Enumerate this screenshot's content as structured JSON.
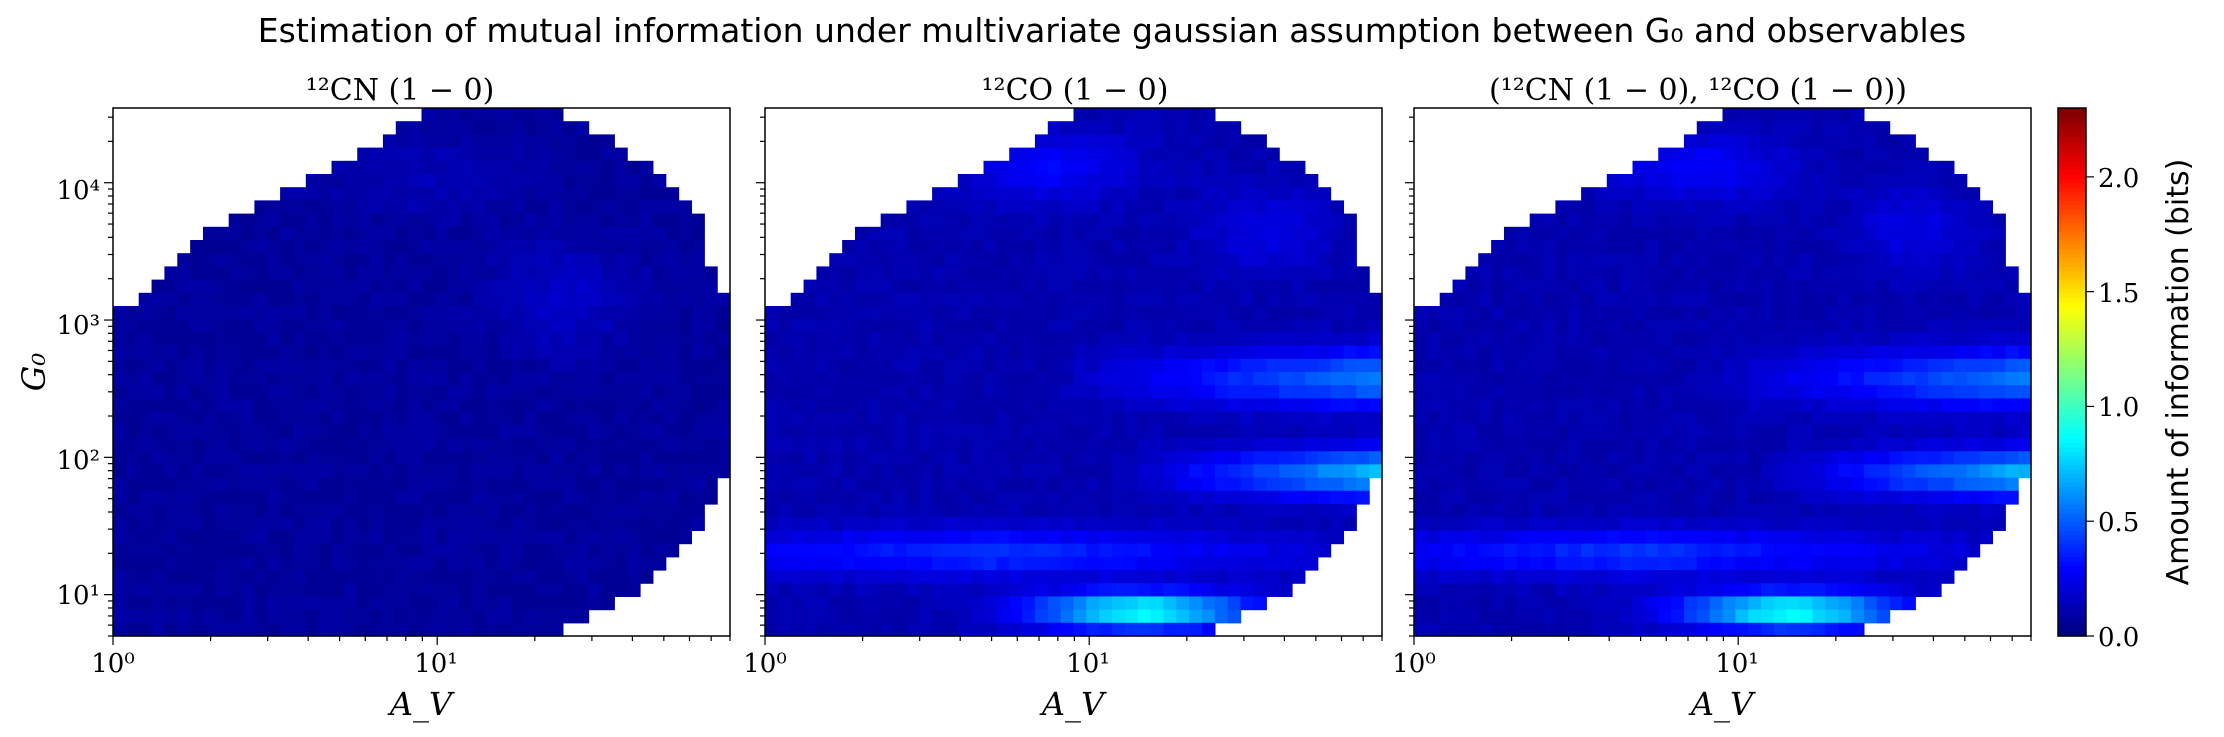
{
  "figure": {
    "title": "Estimation of mutual information under multivariate gaussian assumption between G₀ and observables"
  },
  "colorbar": {
    "label": "Amount of information (bits)",
    "ticks": [
      "0.0",
      "0.5",
      "1.0",
      "1.5",
      "2.0"
    ],
    "colormap": "jet",
    "range": [
      0,
      2.3
    ]
  },
  "chart_data": [
    {
      "type": "heatmap",
      "title": "¹²CN (1 − 0)",
      "xlabel": "A_V",
      "ylabel": "G₀",
      "xscale": "log",
      "yscale": "log",
      "xlim": [
        1,
        80
      ],
      "ylim": [
        5,
        35000
      ],
      "xticks": [
        "10⁰",
        "10¹"
      ],
      "yticks": [
        "10¹",
        "10²",
        "10³",
        "10⁴"
      ],
      "value_range": [
        0,
        0.3
      ],
      "description_level": "nearly uniform ~0.02–0.15 bits"
    },
    {
      "type": "heatmap",
      "title": "¹²CO (1 − 0)",
      "xlabel": "A_V",
      "xscale": "log",
      "yscale": "log",
      "xlim": [
        1,
        80
      ],
      "ylim": [
        5,
        35000
      ],
      "xticks": [
        "10⁰",
        "10¹"
      ],
      "value_range": [
        0,
        1.1
      ],
      "max_value": 1.1
    },
    {
      "type": "heatmap",
      "title": "(¹²CN (1 − 0), ¹²CO (1 − 0))",
      "xlabel": "A_V",
      "xscale": "log",
      "yscale": "log",
      "xlim": [
        1,
        80
      ],
      "ylim": [
        5,
        35000
      ],
      "xticks": [
        "10⁰",
        "10¹"
      ],
      "value_range": [
        0,
        1.1
      ],
      "max_value": 1.1
    }
  ]
}
